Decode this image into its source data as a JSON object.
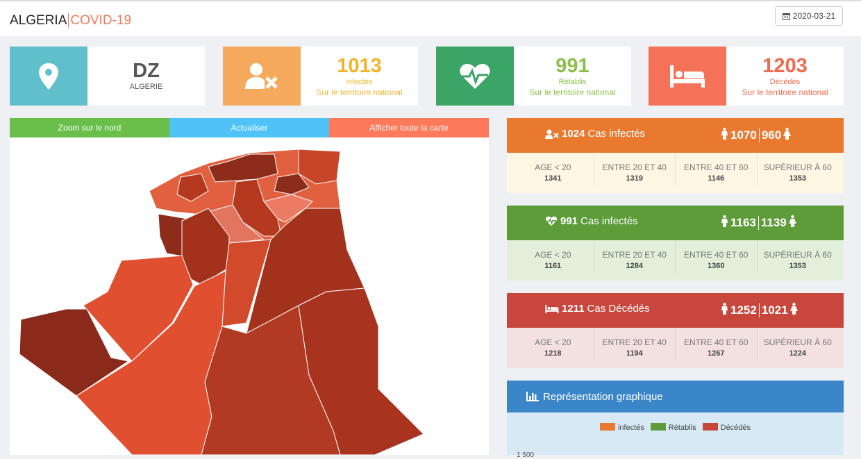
{
  "header": {
    "title": "ALGERIA",
    "subtitle": "COVID-19",
    "date": "2020-03-21"
  },
  "cards": [
    {
      "code": "DZ",
      "label": "ALGERIE"
    },
    {
      "value": 1013,
      "label": "infectés",
      "note": "Sur le territoire national"
    },
    {
      "value": 991,
      "label": "Rétablis",
      "note": "Sur le territoire national"
    },
    {
      "value": 1203,
      "label": "Décédés",
      "note": "Sur le territoire national"
    }
  ],
  "map_buttons": [
    "Zoom sur le nord",
    "Actualiser",
    "Afficher toute la carte"
  ],
  "age_groups": [
    "AGE < 20",
    "ENTRE 20 ET 40",
    "ENTRE 40 ET 60",
    "SUPÉRIEUR À 60"
  ],
  "panels": [
    {
      "count": 1024,
      "label": "Cas infectés",
      "male": 1070,
      "female": 960,
      "ages": [
        1341,
        1319,
        1146,
        1353
      ]
    },
    {
      "count": 991,
      "label": "Cas infectés",
      "male": 1163,
      "female": 1139,
      "ages": [
        1161,
        1284,
        1360,
        1353
      ]
    },
    {
      "count": 1211,
      "label": "Cas Décédés",
      "male": 1252,
      "female": 1021,
      "ages": [
        1218,
        1194,
        1267,
        1224
      ]
    }
  ],
  "chart_panel": {
    "title": "Représentation graphique",
    "legend": [
      {
        "name": "infectés",
        "color": "#e8792f"
      },
      {
        "name": "Rétablis",
        "color": "#5e9c3a"
      },
      {
        "name": "Décédés",
        "color": "#c9463d"
      }
    ],
    "ytick": "1 500"
  }
}
